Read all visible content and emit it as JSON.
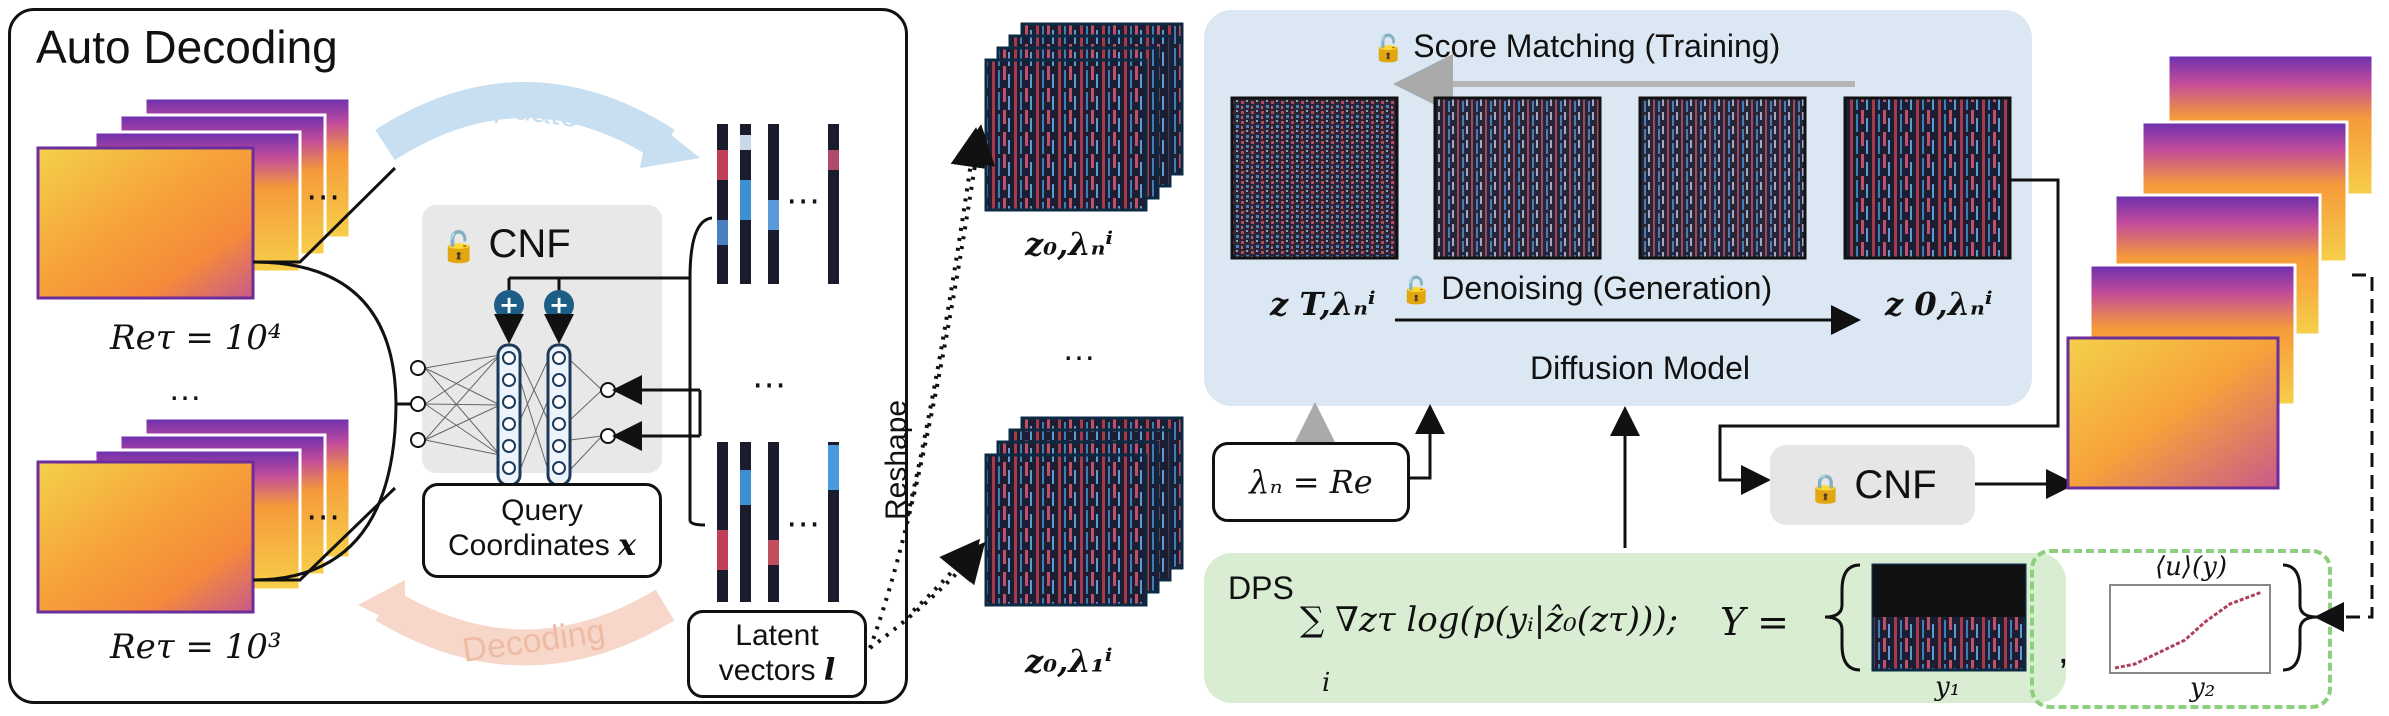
{
  "auto_decoding": {
    "title": "Auto Decoding",
    "update_label": "Update",
    "decoding_label": "Decoding",
    "re_top": "Reτ = 10⁴",
    "re_bottom": "Reτ = 10³",
    "ellipsis": "…",
    "cnf_label": "CNF",
    "query_line1": "Query",
    "query_line2": "Coordinates ",
    "query_symbol": "x",
    "latent_line1": "Latent",
    "latent_line2": "vectors ",
    "latent_symbol": "l"
  },
  "reshape": {
    "label": "Reshape",
    "z_top": "z₀,λₙⁱ",
    "z_bottom": "z₀,λ₁ⁱ",
    "ellipsis": "…"
  },
  "diffusion": {
    "score_matching": "Score Matching (Training)",
    "denoising": "Denoising (Generation)",
    "model_label": "Diffusion Model",
    "z_T": "z T,λₙⁱ",
    "z_0": "z 0,λₙⁱ"
  },
  "conditioning": {
    "lambda_label": "λₙ = Re"
  },
  "cnf_right": {
    "label": "CNF"
  },
  "dps": {
    "label": "DPS",
    "formula": "∑ ∇zτ log(p(yᵢ|ẑ₀(zτ)));",
    "sum_index": "i",
    "Y_eq": "Y =",
    "y1": "y₁",
    "y2": "y₂",
    "plot_title": "⟨u⟩(y)",
    "comma": ","
  },
  "colors": {
    "diffusion_bg": "#dbe7f3",
    "dps_bg": "#d8edd2",
    "accent_blue": "#1d5e86",
    "update_arrow": "#c7dff0",
    "decoding_arrow": "#f6d7c9",
    "score_arrow": "#b5b5b5"
  }
}
